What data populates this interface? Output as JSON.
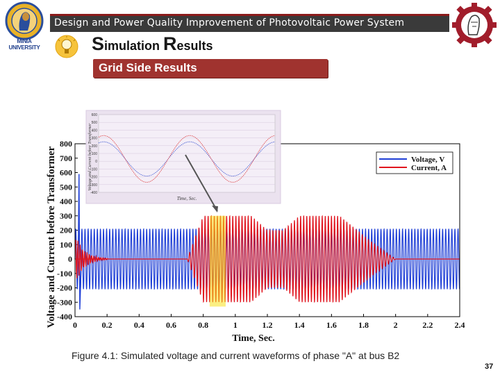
{
  "header": {
    "banner_text": "Design and Power Quality Improvement of Photovoltaic Power System",
    "title_first_letter": "S",
    "title_rest_1": "imulation ",
    "title_second_letter": "R",
    "title_rest_2": "esults",
    "left_logo_text": "MINIA UNIVERSITY",
    "section_label": "Grid Side Results"
  },
  "colors": {
    "banner_bg": "#3a3a3a",
    "banner_border": "#8b1a1a",
    "section_bg": "#a0332f",
    "voltage": "#1f3fd6",
    "current": "#e0141e",
    "inset_bg": "#ebe2ef",
    "highlight": "#f7e21c"
  },
  "chart_data": [
    {
      "type": "line",
      "xlabel": "Time, Sec.",
      "ylabel": "Voltage and Current before Transformer",
      "xlim": [
        0,
        2.4
      ],
      "ylim": [
        -400,
        800
      ],
      "x_ticks": [
        "0",
        "0.2",
        "0.4",
        "0.6",
        "0.8",
        "1",
        "1.2",
        "1.4",
        "1.6",
        "1.8",
        "2",
        "2.2",
        "2.4"
      ],
      "y_ticks": [
        "800",
        "700",
        "600",
        "500",
        "400",
        "300",
        "200",
        "100",
        "0",
        "-100",
        "-200",
        "-300",
        "-400"
      ],
      "legend_position": "top-right",
      "series": [
        {
          "name": "Voltage, V",
          "color": "#1f3fd6",
          "amplitude": 210,
          "initial_spike": 590
        },
        {
          "name": "Current, A",
          "color": "#e0141e",
          "envelope": [
            [
              0,
              0
            ],
            [
              0.7,
              0
            ],
            [
              0.8,
              300
            ],
            [
              1.1,
              300
            ],
            [
              1.2,
              200
            ],
            [
              1.3,
              200
            ],
            [
              1.4,
              300
            ],
            [
              1.65,
              300
            ],
            [
              1.85,
              120
            ],
            [
              2.0,
              0
            ],
            [
              2.4,
              0
            ]
          ]
        }
      ]
    },
    {
      "type": "line",
      "xlabel": "Time, Sec.",
      "ylabel": "Voltage and Current before Transformer",
      "y_ticks": [
        "600",
        "500",
        "400",
        "300",
        "200",
        "100",
        "0",
        "-100",
        "-200",
        "-300",
        "-400"
      ],
      "series": [
        {
          "name": "Voltage, V",
          "color": "#5b6fd8",
          "amplitude": 220
        },
        {
          "name": "Current, A",
          "color": "#e05a5e",
          "amplitude": 300
        }
      ]
    }
  ],
  "caption": "Figure 4.1: Simulated voltage and current waveforms of phase \"A\" at bus B2",
  "page_number": "37"
}
